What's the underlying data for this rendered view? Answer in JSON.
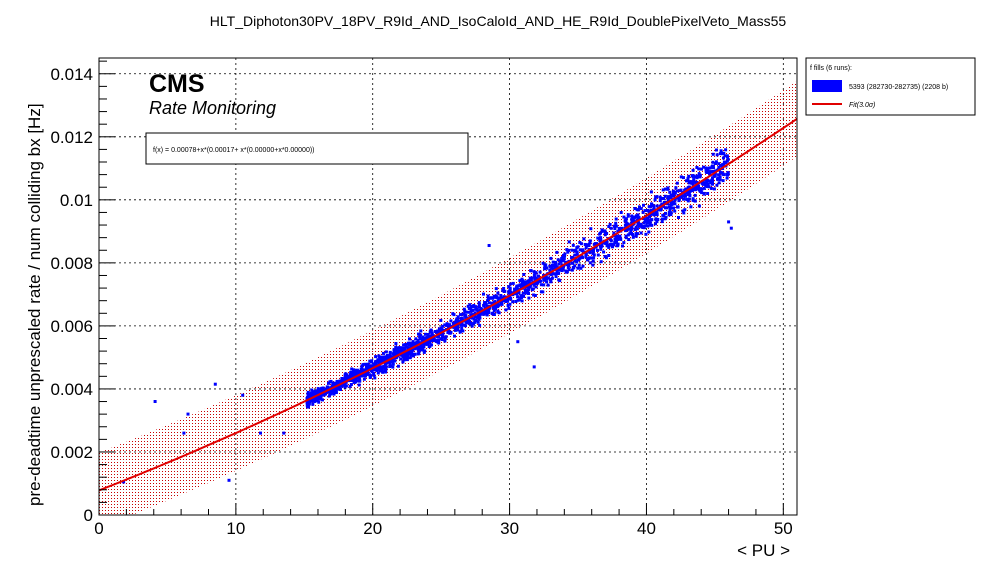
{
  "chart_data": {
    "type": "scatter",
    "title": "HLT_Diphoton30PV_18PV_R9Id_AND_IsoCaloId_AND_HE_R9Id_DoublePixelVeto_Mass55",
    "xlabel": "< PU >",
    "ylabel": "pre-deadtime unprescaled rate / num colliding bx [Hz]",
    "xlim": [
      0,
      51
    ],
    "ylim": [
      0,
      0.0145
    ],
    "x_ticks": [
      0,
      10,
      20,
      30,
      40,
      50
    ],
    "x_tick_labels": [
      "0",
      "10",
      "20",
      "30",
      "40",
      "50"
    ],
    "y_ticks": [
      0,
      0.002,
      0.004,
      0.006,
      0.008,
      0.01,
      0.012,
      0.014
    ],
    "y_tick_labels": [
      "0",
      "0.002",
      "0.004",
      "0.006",
      "0.008",
      "0.01",
      "0.012",
      "0.014"
    ],
    "grid": true,
    "brand": "CMS",
    "subtitle": "Rate Monitoring",
    "fit_formula": "f(x) = 0.00078+x*(0.00017+ x*(0.00000+x*0.00000))",
    "fit": {
      "intercept": 0.00078,
      "slope_at_0": 0.00017,
      "curvature": 1.2e-06,
      "band_halfwidth": 0.0012
    },
    "legend": {
      "position": "top-right",
      "header": "f fills (6 runs):",
      "entries": [
        {
          "label": "5393 (282730-282735) (2208 b)",
          "kind": "fill",
          "color": "#0000ff"
        },
        {
          "label": "Fit(3.0σ)",
          "kind": "line",
          "color": "#e00000"
        }
      ]
    },
    "series": [
      {
        "name": "5393 (282730-282735) (2208 b)",
        "color": "#0000ff",
        "cloud": {
          "x_range": [
            15.2,
            46
          ],
          "points": 1800,
          "relative_spread": 0.055
        },
        "outliers": [
          [
            1.8,
            0.00105
          ],
          [
            4.1,
            0.0036
          ],
          [
            6.2,
            0.0026
          ],
          [
            6.5,
            0.0032
          ],
          [
            8.5,
            0.00415
          ],
          [
            9.5,
            0.0011
          ],
          [
            10.5,
            0.0038
          ],
          [
            11.8,
            0.0026
          ],
          [
            13.5,
            0.0026
          ],
          [
            28.5,
            0.00855
          ],
          [
            31.8,
            0.0047
          ],
          [
            30.6,
            0.0055
          ],
          [
            46.2,
            0.0091
          ],
          [
            46.0,
            0.0093
          ]
        ]
      }
    ],
    "colors": {
      "points": "#0000ff",
      "fit_line": "#e00000",
      "band": "#c80000"
    }
  }
}
